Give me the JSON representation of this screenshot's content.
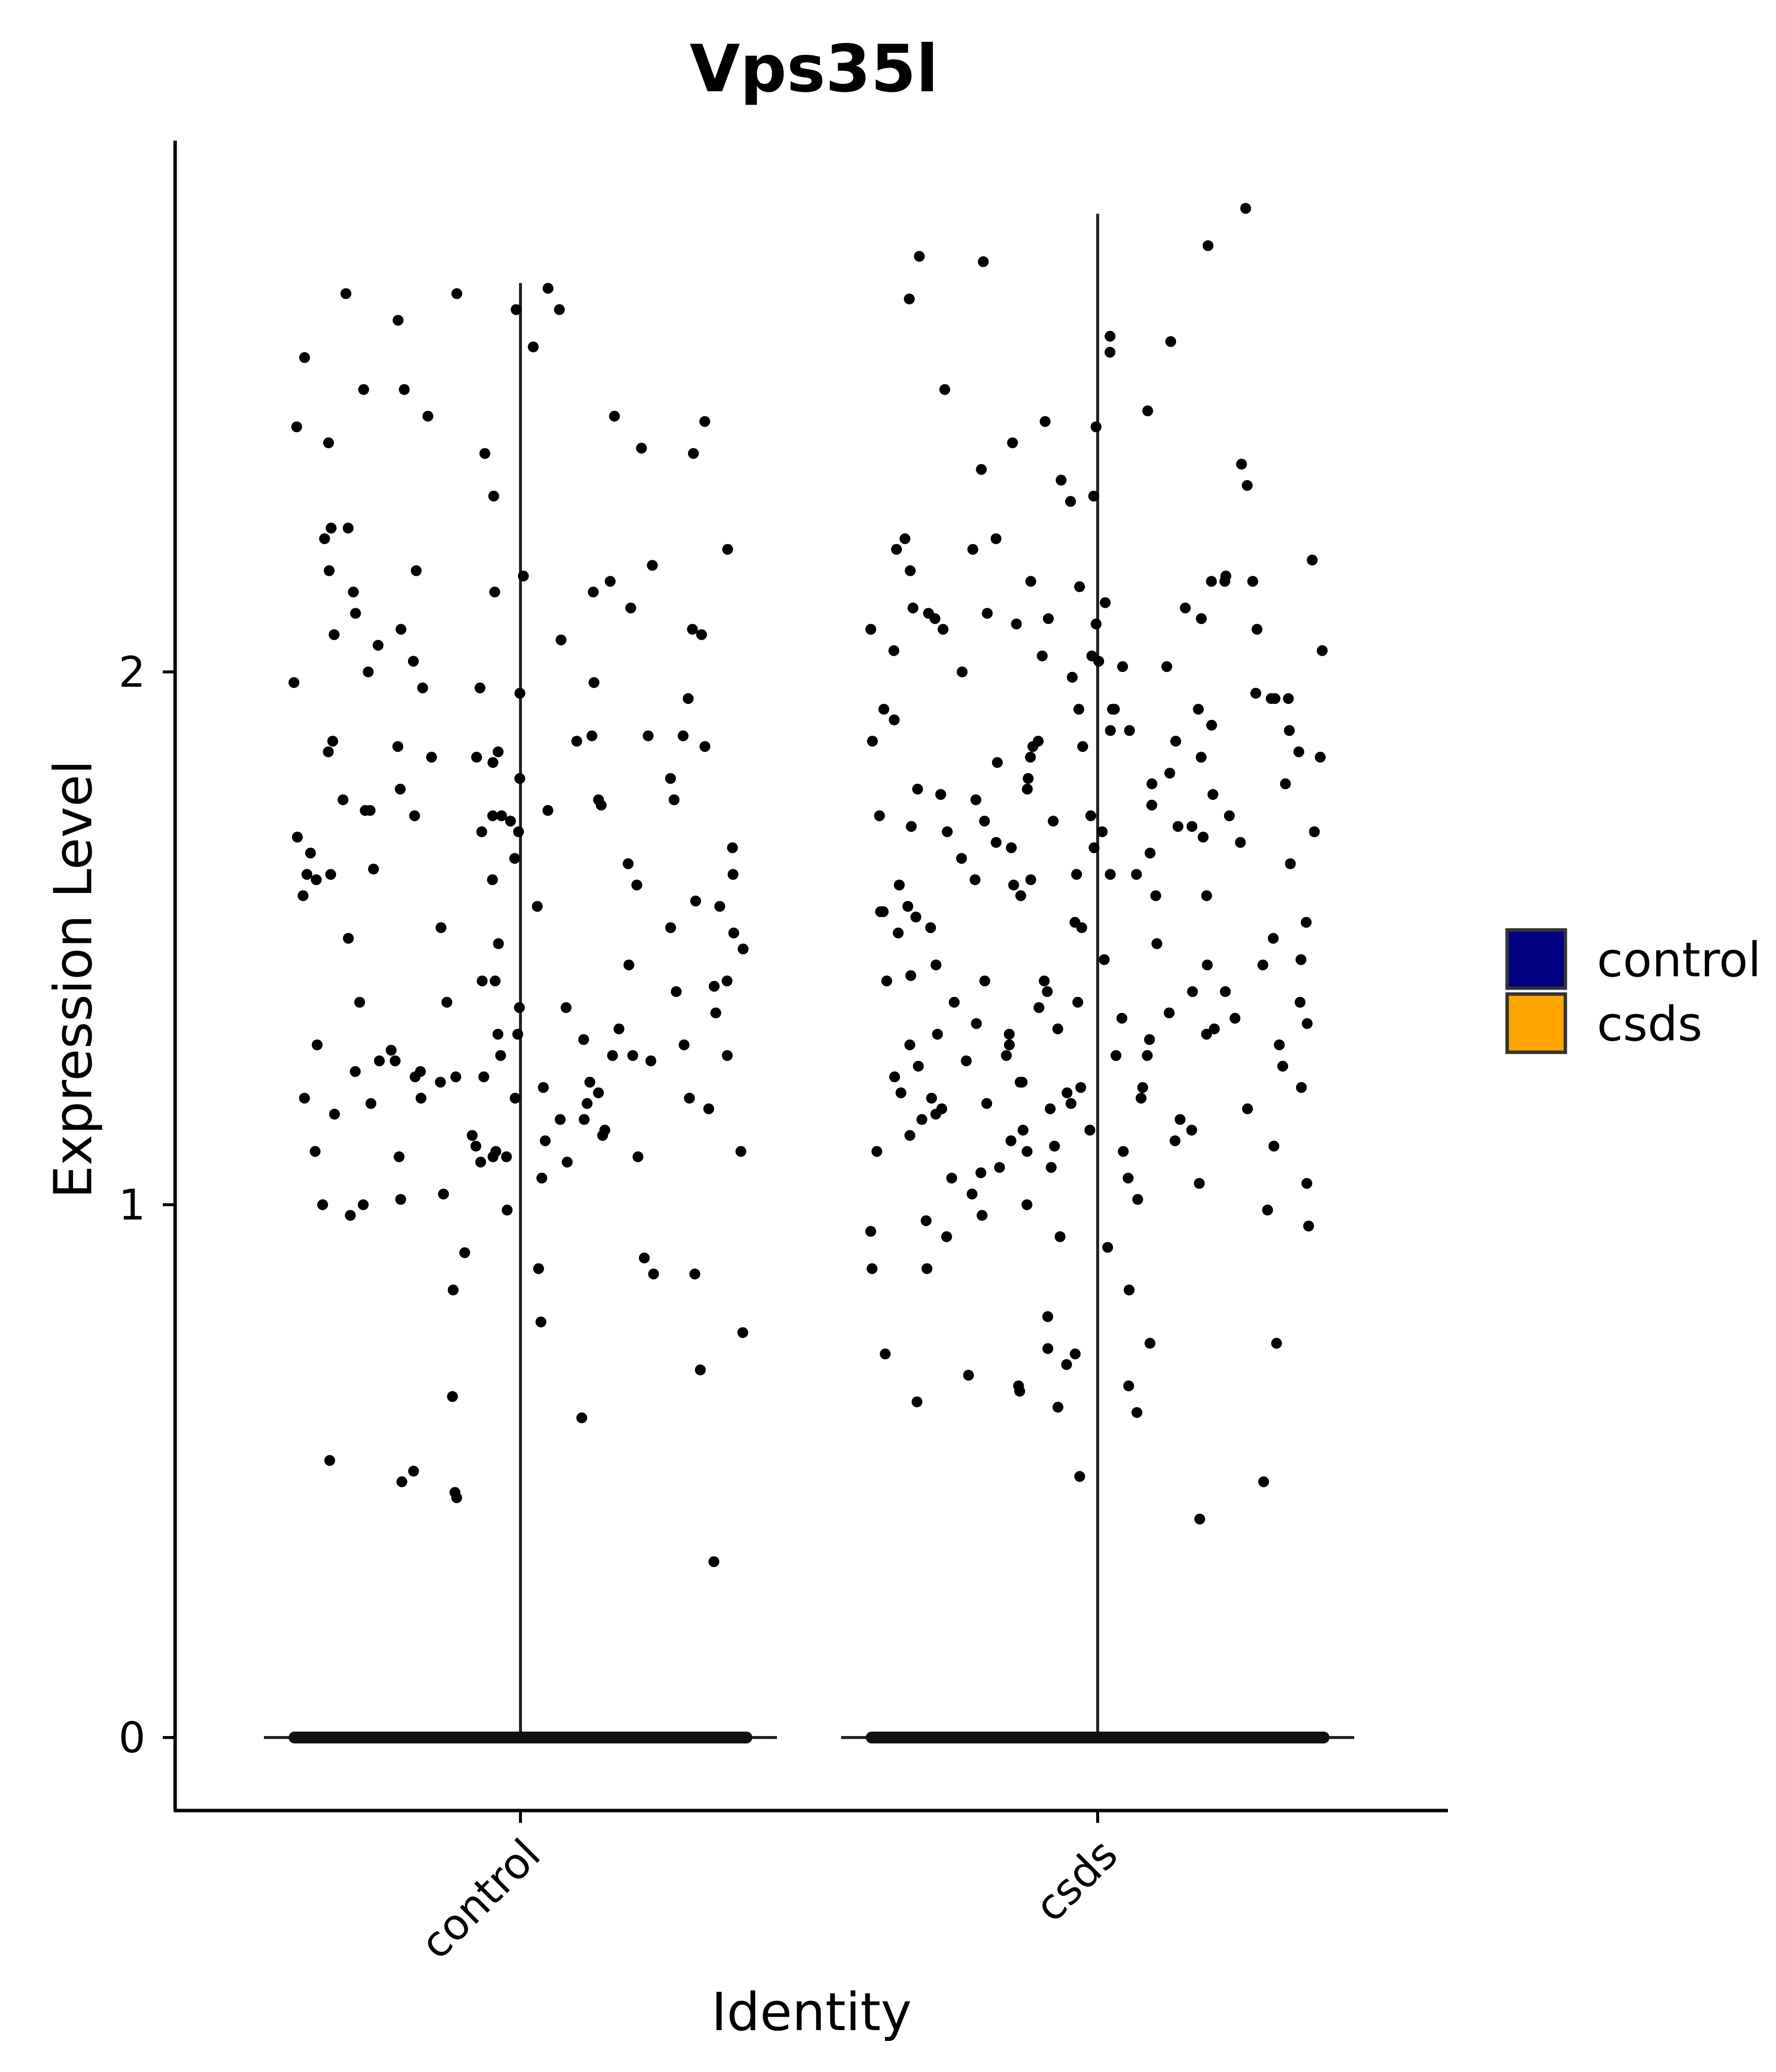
{
  "chart_data": {
    "type": "violin",
    "title": "Vps35l",
    "xlabel": "Identity",
    "ylabel": "Expression Level",
    "ylim": [
      -0.14,
      3.02
    ],
    "yticks": [
      0,
      1,
      2
    ],
    "categories": [
      "control",
      "csds"
    ],
    "grid": false,
    "legend": {
      "placement": "right",
      "entries": [
        {
          "label": "control",
          "color": "#000080"
        },
        {
          "label": "csds",
          "color": "#FFA500"
        }
      ]
    },
    "series": [
      {
        "name": "control",
        "max": 2.73,
        "zero_fraction_note": "",
        "points": [
          2.68,
          2.72,
          2.71,
          2.53,
          2.15,
          2.18,
          2.19,
          2.08,
          2.06,
          1.97,
          1.97,
          1.88,
          1.88,
          1.85,
          1.8,
          1.78,
          1.76,
          1.74,
          1.74,
          1.65,
          1.63,
          1.61,
          1.56,
          1.51,
          1.5,
          1.42,
          1.28,
          1.27,
          1.24,
          1.22,
          1.21,
          1.2,
          1.19,
          1.1,
          1.1,
          1.09,
          1.05,
          1.02,
          1.0,
          0.9,
          0.84,
          0.64,
          0.52,
          0.33,
          0.48,
          0.87,
          0.99,
          1.01,
          1.08,
          1.11,
          1.09,
          1.23,
          1.25,
          1.27,
          1.32,
          1.17,
          1.1,
          1.08,
          1.13,
          1.19,
          1.42,
          1.52,
          1.61,
          1.7,
          1.73,
          1.76,
          1.85,
          1.83,
          2.02,
          2.08,
          2.12,
          2.15,
          2.19,
          2.42,
          1.88,
          1.62,
          1.41,
          1.3,
          1.28,
          1.16,
          1.12,
          1.2,
          1.23,
          1.24,
          1.29,
          1.13,
          1.14,
          1.64,
          1.73,
          2.23,
          2.46,
          2.71,
          2.68,
          2.33,
          2.07,
          1.48,
          1.28,
          1.2,
          1.16,
          1.09,
          0.98,
          0.87,
          0.69,
          0.5,
          2.59,
          2.53,
          2.48,
          2.17,
          2.15,
          1.95,
          1.86,
          1.8,
          1.74,
          1.66,
          1.62,
          1.58,
          1.56,
          1.52,
          1.4,
          1.38,
          1.32,
          1.3,
          1.25,
          1.2,
          1.0,
          0.46,
          2.66,
          2.48,
          2.2,
          2.11,
          2.0,
          1.98,
          1.87,
          1.87,
          1.84,
          1.76,
          1.72,
          1.7,
          1.69,
          1.6,
          1.49,
          1.45,
          1.38,
          1.36,
          1.33,
          1.31,
          1.24,
          0.45,
          2.43,
          2.41,
          2.27,
          2.25,
          2.05,
          1.84,
          1.62,
          1.37,
          1.09,
          0.91,
          0.88,
          2.47,
          2.61,
          2.41,
          2.27,
          2.07,
          1.98,
          1.96,
          1.86,
          1.75,
          1.73,
          1.67,
          1.57,
          1.42,
          1.37,
          1.28,
          1.27,
          1.18,
          0.78,
          0.76,
          0.6
        ],
        "zero_count_visible": "many"
      },
      {
        "name": "csds",
        "max": 2.86,
        "points": [
          2.35,
          2.32,
          2.25,
          2.21,
          2.01,
          2.01,
          2.1,
          2.17,
          2.18,
          2.02,
          1.99,
          1.95,
          1.93,
          1.91,
          1.87,
          1.86,
          1.84,
          1.81,
          1.77,
          1.71,
          1.7,
          1.65,
          1.62,
          1.6,
          1.55,
          1.53,
          1.46,
          1.42,
          1.4,
          1.38,
          1.36,
          1.34,
          1.32,
          1.3,
          1.26,
          1.22,
          1.18,
          1.18,
          1.05,
          1.0,
          0.94,
          0.74,
          0.66,
          2.7,
          2.53,
          1.73,
          1.72,
          1.72,
          1.7,
          1.58,
          1.55,
          1.51,
          1.45,
          1.38,
          1.35,
          1.3,
          1.26,
          1.11,
          1.02,
          0.79,
          0.72,
          2.11,
          2.1,
          2.08,
          1.93,
          1.93,
          1.83,
          1.78,
          1.76,
          1.69,
          1.67,
          1.61,
          1.58,
          1.5,
          1.46,
          1.42,
          1.38,
          1.35,
          1.33,
          1.3,
          1.27,
          1.2,
          1.04,
          1.01,
          0.96,
          2.25,
          2.17,
          2.09,
          2.08,
          1.95,
          1.75,
          1.73,
          1.71,
          1.68,
          1.62,
          1.52,
          1.4,
          1.34,
          1.28,
          1.23,
          1.14,
          1.1,
          1.05,
          0.88,
          0.73,
          2.87,
          2.8,
          2.63,
          2.6,
          2.49,
          2.47,
          2.19,
          2.1,
          2.03,
          1.89,
          1.77,
          1.64,
          1.53,
          1.45,
          1.19,
          1.13,
          1.11,
          1.1,
          2.77,
          2.38,
          2.04,
          1.84,
          1.8,
          1.7,
          1.68,
          1.31,
          1.28,
          1.24,
          1.22,
          1.18,
          1.14,
          1.12,
          1.06,
          0.92,
          0.84,
          0.68,
          0.61,
          2.62,
          2.33,
          2.12,
          2.08,
          2.03,
          1.93,
          1.87,
          1.79,
          1.54,
          1.43,
          1.32,
          1.21,
          1.12,
          1.04,
          0.99,
          0.94,
          0.88,
          2.17,
          2.04,
          1.96,
          1.9,
          1.89,
          1.79,
          1.73,
          1.67,
          1.66,
          1.6,
          1.49,
          1.37,
          1.28,
          1.22,
          1.2,
          1.17,
          1.16,
          1.14,
          1.1,
          0.98,
          0.97,
          0.66,
          2.23,
          2.11,
          2.09,
          1.93,
          1.89,
          1.85,
          1.71,
          1.61,
          1.56,
          1.45,
          1.32,
          1.23,
          1.16,
          0.65,
          0.63,
          0.62,
          2.43,
          2.39,
          2.16,
          2.13,
          1.95,
          1.87,
          1.86,
          1.58,
          1.52,
          1.42,
          1.4,
          1.19,
          0.74,
          0.7,
          0.49,
          0.48,
          2.78,
          2.46,
          2.36,
          2.23,
          2.17,
          2.12,
          2.0,
          1.84,
          1.78,
          1.62,
          1.33,
          1.21,
          1.07,
          1.07,
          0.95,
          0.72,
          0.41
        ],
        "zero_count_visible": "many"
      }
    ]
  }
}
